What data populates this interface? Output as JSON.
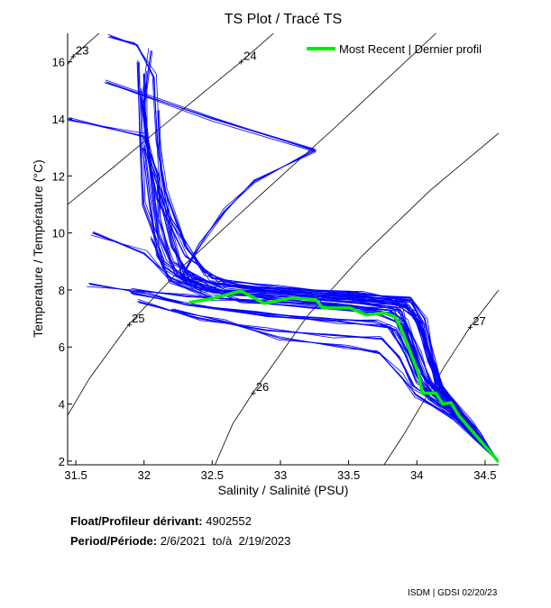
{
  "chart_data": {
    "type": "line",
    "title": "TS Plot / Tracé TS",
    "xlabel": "Salinity / Salinité (PSU)",
    "ylabel": "Temperature / Température (°C)",
    "xlim": [
      31.44,
      34.6
    ],
    "ylim": [
      1.87,
      17.0
    ],
    "xticks": [
      "31.5",
      "32",
      "32.5",
      "33",
      "33.5",
      "34",
      "34.5"
    ],
    "yticks": [
      "2",
      "4",
      "6",
      "8",
      "10",
      "12",
      "14",
      "16"
    ],
    "grid": false,
    "legend": {
      "position": "top-right",
      "entries": [
        "Most Recent | Dernier profil"
      ]
    },
    "colors": {
      "history": "#0000ff",
      "recent": "#00ee00",
      "contour": "#000000"
    },
    "density_contours": [
      {
        "label": "23",
        "label_at": [
          31.48,
          16.2
        ],
        "points": [
          [
            31.44,
            15.9
          ],
          [
            31.48,
            16.2
          ],
          [
            31.67,
            17.0
          ]
        ]
      },
      {
        "label": "24",
        "label_at": [
          32.71,
          16.0
        ],
        "points": [
          [
            31.44,
            11.0
          ],
          [
            31.8,
            12.4
          ],
          [
            32.2,
            14.0
          ],
          [
            32.71,
            16.0
          ],
          [
            32.95,
            17.0
          ]
        ]
      },
      {
        "label": "25",
        "label_at": [
          31.89,
          6.8
        ],
        "points": [
          [
            31.44,
            3.6
          ],
          [
            31.6,
            4.9
          ],
          [
            31.89,
            6.8
          ],
          [
            32.3,
            8.9
          ],
          [
            32.8,
            11.1
          ],
          [
            33.4,
            13.7
          ],
          [
            34.14,
            17.0
          ]
        ]
      },
      {
        "label": "26",
        "label_at": [
          32.8,
          4.4
        ],
        "points": [
          [
            32.52,
            1.87
          ],
          [
            32.65,
            3.3
          ],
          [
            32.8,
            4.4
          ],
          [
            33.2,
            7.1
          ],
          [
            33.6,
            9.2
          ],
          [
            34.1,
            11.5
          ],
          [
            34.6,
            13.5
          ]
        ]
      },
      {
        "label": "27",
        "label_at": [
          34.39,
          6.7
        ],
        "points": [
          [
            33.76,
            1.87
          ],
          [
            33.9,
            2.9
          ],
          [
            34.05,
            4.1
          ],
          [
            34.2,
            5.3
          ],
          [
            34.39,
            6.7
          ],
          [
            34.6,
            8.0
          ]
        ]
      }
    ],
    "history_profiles": [
      [
        [
          32.05,
          16.4
        ],
        [
          32.0,
          14.5
        ],
        [
          32.05,
          12.0
        ],
        [
          32.1,
          10.0
        ],
        [
          32.25,
          8.5
        ],
        [
          32.6,
          7.9
        ],
        [
          33.0,
          7.8
        ],
        [
          33.5,
          7.6
        ],
        [
          33.85,
          7.4
        ],
        [
          33.95,
          6.5
        ],
        [
          34.05,
          5.0
        ],
        [
          34.2,
          4.2
        ],
        [
          34.4,
          3.2
        ],
        [
          34.6,
          2.0
        ]
      ],
      [
        [
          31.95,
          16.0
        ],
        [
          31.97,
          13.5
        ],
        [
          32.0,
          11.0
        ],
        [
          32.15,
          9.0
        ],
        [
          32.4,
          8.1
        ],
        [
          32.9,
          7.7
        ],
        [
          33.4,
          7.5
        ],
        [
          33.8,
          7.3
        ],
        [
          33.92,
          6.6
        ],
        [
          34.0,
          5.4
        ],
        [
          34.1,
          4.5
        ],
        [
          34.35,
          3.4
        ],
        [
          34.6,
          2.0
        ]
      ],
      [
        [
          32.0,
          15.6
        ],
        [
          32.02,
          13.0
        ],
        [
          32.1,
          11.2
        ],
        [
          32.3,
          9.2
        ],
        [
          32.6,
          8.2
        ],
        [
          33.1,
          8.0
        ],
        [
          33.6,
          7.9
        ],
        [
          33.95,
          7.6
        ],
        [
          34.05,
          6.8
        ],
        [
          34.12,
          5.2
        ],
        [
          34.2,
          4.4
        ],
        [
          34.45,
          2.9
        ],
        [
          34.6,
          2.0
        ]
      ],
      [
        [
          31.98,
          15.0
        ],
        [
          32.05,
          12.5
        ],
        [
          32.2,
          10.5
        ],
        [
          32.45,
          8.6
        ],
        [
          32.8,
          8.0
        ],
        [
          33.3,
          7.9
        ],
        [
          33.8,
          7.7
        ],
        [
          33.98,
          7.2
        ],
        [
          34.08,
          5.8
        ],
        [
          34.15,
          4.6
        ],
        [
          34.4,
          3.2
        ],
        [
          34.6,
          2.0
        ]
      ],
      [
        [
          32.1,
          14.3
        ],
        [
          32.12,
          12.2
        ],
        [
          32.2,
          10.0
        ],
        [
          32.3,
          8.4
        ],
        [
          32.7,
          7.6
        ],
        [
          33.2,
          7.4
        ],
        [
          33.7,
          7.2
        ],
        [
          33.9,
          6.8
        ],
        [
          33.97,
          5.8
        ],
        [
          34.03,
          4.8
        ],
        [
          34.25,
          3.8
        ],
        [
          34.6,
          2.0
        ]
      ],
      [
        [
          32.0,
          13.0
        ],
        [
          32.05,
          11.0
        ],
        [
          32.1,
          9.2
        ],
        [
          32.2,
          8.3
        ],
        [
          32.5,
          7.7
        ],
        [
          33.0,
          7.6
        ],
        [
          33.5,
          7.4
        ],
        [
          33.82,
          7.2
        ],
        [
          33.9,
          6.4
        ],
        [
          34.0,
          5.0
        ],
        [
          34.1,
          4.2
        ],
        [
          34.35,
          3.3
        ],
        [
          34.6,
          2.0
        ]
      ],
      [
        [
          31.9,
          7.9
        ],
        [
          32.3,
          7.5
        ],
        [
          32.8,
          7.2
        ],
        [
          33.3,
          7.0
        ],
        [
          33.7,
          6.9
        ],
        [
          33.85,
          6.6
        ],
        [
          33.95,
          5.6
        ],
        [
          34.05,
          4.6
        ],
        [
          34.3,
          3.6
        ],
        [
          34.6,
          2.0
        ]
      ],
      [
        [
          31.95,
          7.6
        ],
        [
          32.4,
          7.0
        ],
        [
          32.9,
          6.6
        ],
        [
          33.4,
          6.4
        ],
        [
          33.75,
          6.3
        ],
        [
          33.87,
          5.6
        ],
        [
          33.98,
          4.6
        ],
        [
          34.2,
          3.9
        ],
        [
          34.6,
          2.0
        ]
      ],
      [
        [
          32.2,
          7.3
        ],
        [
          32.6,
          6.9
        ],
        [
          33.0,
          6.3
        ],
        [
          33.5,
          6.0
        ],
        [
          33.72,
          5.8
        ],
        [
          33.88,
          5.0
        ],
        [
          34.0,
          4.3
        ],
        [
          34.3,
          3.4
        ],
        [
          34.6,
          2.0
        ]
      ],
      [
        [
          32.05,
          9.8
        ],
        [
          32.15,
          8.8
        ],
        [
          32.4,
          8.0
        ],
        [
          32.9,
          7.9
        ],
        [
          33.4,
          7.7
        ],
        [
          33.85,
          7.5
        ],
        [
          34.0,
          7.0
        ],
        [
          34.1,
          5.6
        ],
        [
          34.18,
          4.7
        ],
        [
          34.4,
          3.3
        ],
        [
          34.6,
          2.0
        ]
      ],
      [
        [
          32.1,
          11.5
        ],
        [
          32.2,
          9.5
        ],
        [
          32.35,
          8.4
        ],
        [
          32.7,
          8.1
        ],
        [
          33.2,
          7.8
        ],
        [
          33.7,
          7.6
        ],
        [
          33.93,
          7.4
        ],
        [
          34.05,
          6.6
        ],
        [
          34.12,
          5.3
        ],
        [
          34.22,
          4.3
        ],
        [
          34.45,
          2.9
        ],
        [
          34.6,
          2.0
        ]
      ],
      [
        [
          31.92,
          8.0
        ],
        [
          32.3,
          7.8
        ],
        [
          32.8,
          7.6
        ],
        [
          33.3,
          7.5
        ],
        [
          33.8,
          7.3
        ],
        [
          33.92,
          6.9
        ],
        [
          34.02,
          5.8
        ],
        [
          34.1,
          4.8
        ],
        [
          34.3,
          3.8
        ],
        [
          34.6,
          2.0
        ]
      ],
      [
        [
          31.72,
          15.3
        ],
        [
          32.5,
          14.0
        ],
        [
          33.26,
          12.9
        ],
        [
          32.8,
          11.8
        ],
        [
          32.6,
          10.8
        ],
        [
          32.4,
          9.6
        ],
        [
          32.3,
          8.6
        ],
        [
          32.6,
          8.0
        ],
        [
          33.1,
          7.9
        ],
        [
          33.6,
          7.7
        ],
        [
          33.9,
          7.5
        ],
        [
          34.0,
          6.9
        ],
        [
          34.08,
          5.5
        ],
        [
          34.18,
          4.5
        ],
        [
          34.4,
          3.2
        ],
        [
          34.6,
          2.0
        ]
      ],
      [
        [
          31.44,
          14.0
        ],
        [
          32.0,
          13.4
        ],
        [
          32.1,
          12.0
        ],
        [
          32.12,
          10.5
        ],
        [
          32.2,
          9.0
        ],
        [
          32.5,
          8.2
        ],
        [
          33.0,
          8.0
        ],
        [
          33.5,
          7.8
        ],
        [
          33.9,
          7.6
        ],
        [
          34.02,
          6.9
        ],
        [
          34.1,
          5.5
        ],
        [
          34.2,
          4.4
        ],
        [
          34.4,
          3.2
        ],
        [
          34.6,
          2.0
        ]
      ],
      [
        [
          31.6,
          8.2
        ],
        [
          32.0,
          7.9
        ],
        [
          32.3,
          7.5
        ],
        [
          32.9,
          7.1
        ],
        [
          33.4,
          6.9
        ],
        [
          33.8,
          6.7
        ],
        [
          33.9,
          5.9
        ],
        [
          34.0,
          4.8
        ],
        [
          34.25,
          3.8
        ],
        [
          34.6,
          2.0
        ]
      ],
      [
        [
          31.62,
          10.0
        ],
        [
          32.0,
          9.3
        ],
        [
          32.2,
          8.4
        ],
        [
          32.5,
          7.9
        ],
        [
          33.0,
          7.7
        ],
        [
          33.5,
          7.6
        ],
        [
          33.88,
          7.3
        ],
        [
          33.96,
          6.3
        ],
        [
          34.04,
          5.0
        ],
        [
          34.2,
          4.1
        ],
        [
          34.45,
          2.9
        ],
        [
          34.6,
          2.0
        ]
      ],
      [
        [
          31.75,
          16.9
        ],
        [
          31.95,
          16.6
        ],
        [
          32.07,
          15.5
        ],
        [
          32.1,
          13.2
        ],
        [
          32.15,
          11.5
        ],
        [
          32.3,
          9.5
        ],
        [
          32.5,
          8.4
        ],
        [
          33.0,
          8.1
        ],
        [
          33.5,
          7.9
        ],
        [
          33.95,
          7.7
        ],
        [
          34.06,
          7.0
        ],
        [
          34.12,
          5.6
        ],
        [
          34.2,
          4.5
        ],
        [
          34.45,
          3.0
        ],
        [
          34.6,
          2.0
        ]
      ]
    ],
    "most_recent_profile": [
      [
        32.33,
        7.56
      ],
      [
        32.5,
        7.7
      ],
      [
        32.71,
        7.97
      ],
      [
        32.88,
        7.53
      ],
      [
        33.08,
        7.72
      ],
      [
        33.26,
        7.66
      ],
      [
        33.31,
        7.37
      ],
      [
        33.51,
        7.37
      ],
      [
        33.63,
        7.12
      ],
      [
        33.76,
        7.2
      ],
      [
        33.84,
        7.06
      ],
      [
        33.88,
        6.7
      ],
      [
        34.01,
        5.1
      ],
      [
        34.04,
        4.38
      ],
      [
        34.14,
        4.38
      ],
      [
        34.19,
        4.0
      ],
      [
        34.25,
        4.05
      ],
      [
        34.31,
        3.58
      ],
      [
        34.6,
        1.97
      ]
    ]
  },
  "info": {
    "float_label": "Float/Profileur dérivant:",
    "float_id": "4902552",
    "period_label": "Period/Période:",
    "period_start": "2/6/2021",
    "period_to": "to/à",
    "period_end": "2/19/2023"
  },
  "credit": "ISDM | GDSI  02/20/23"
}
